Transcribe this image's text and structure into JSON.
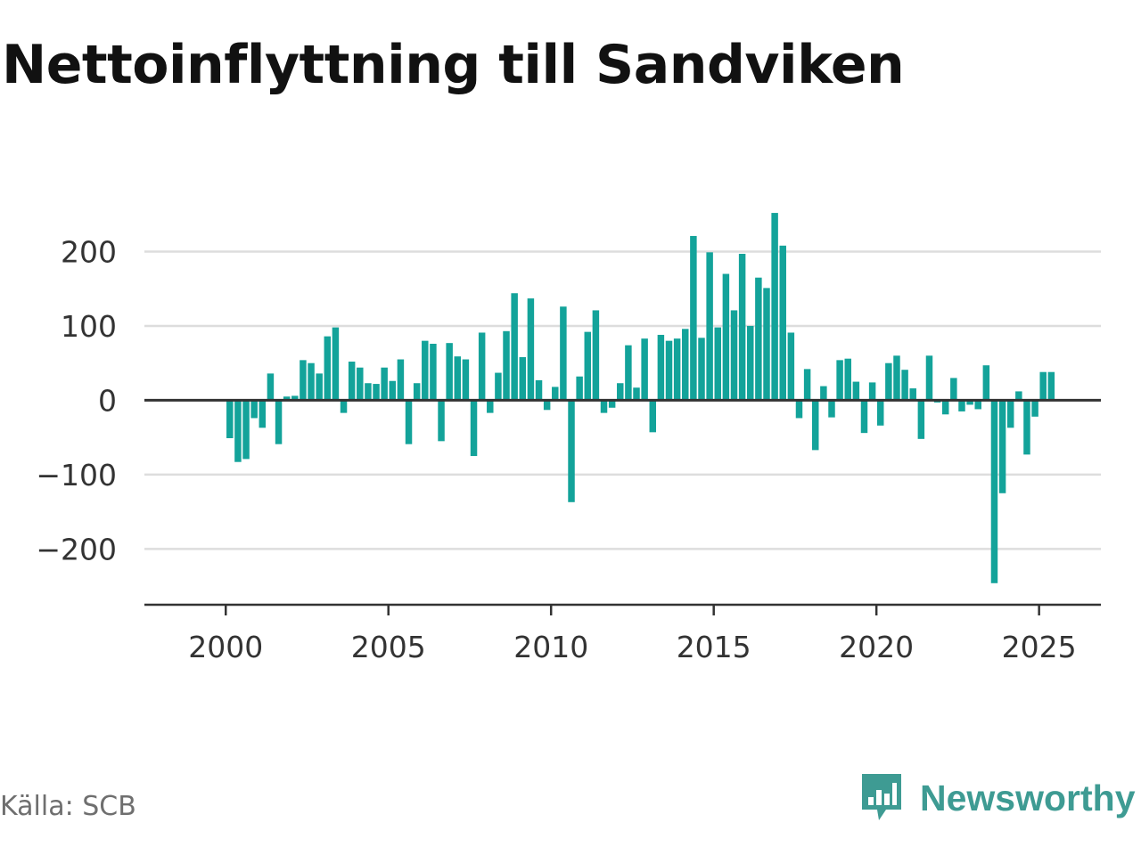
{
  "header": {
    "title": "Nettoinflyttning till Sandviken"
  },
  "footer": {
    "source": "Källa: SCB",
    "brand": "Newsworthy"
  },
  "colors": {
    "bar": "#13a39a",
    "grid": "#dddddd",
    "axis": "#333333",
    "text": "#333333",
    "brand": "#3e9b93"
  },
  "chart_data": {
    "type": "bar",
    "title": "Nettoinflyttning till Sandviken",
    "xlabel": "",
    "ylabel": "",
    "frequency": "quarterly",
    "x_start": "2000-Q1",
    "ylim": [
      -275,
      300
    ],
    "xlim": [
      1997.5,
      2026.9
    ],
    "grid": true,
    "legend": "none",
    "y_ticks": [
      -200,
      -100,
      0,
      100,
      200
    ],
    "y_tick_labels": [
      "−200",
      "−100",
      "0",
      "100",
      "200"
    ],
    "x_ticks": [
      2000,
      2005,
      2010,
      2015,
      2020,
      2025
    ],
    "x_tick_labels": [
      "2000",
      "2005",
      "2010",
      "2015",
      "2020",
      "2025"
    ],
    "values": [
      -51,
      -83,
      -79,
      -24,
      -37,
      36,
      -59,
      5,
      6,
      54,
      50,
      36,
      86,
      98,
      -17,
      52,
      44,
      23,
      22,
      44,
      26,
      55,
      -59,
      23,
      80,
      76,
      -55,
      77,
      59,
      55,
      -75,
      91,
      -17,
      37,
      93,
      144,
      58,
      137,
      27,
      -13,
      18,
      126,
      -137,
      32,
      92,
      121,
      -17,
      -10,
      23,
      74,
      17,
      83,
      -43,
      88,
      80,
      83,
      96,
      221,
      84,
      199,
      98,
      170,
      121,
      197,
      100,
      165,
      151,
      252,
      208,
      91,
      -24,
      42,
      -67,
      19,
      -23,
      54,
      56,
      25,
      -44,
      24,
      -34,
      50,
      60,
      41,
      16,
      -52,
      60,
      -3,
      -19,
      30,
      -15,
      -6,
      -12,
      47,
      -246,
      -125,
      -37,
      12,
      -73,
      -22,
      38,
      38
    ]
  }
}
